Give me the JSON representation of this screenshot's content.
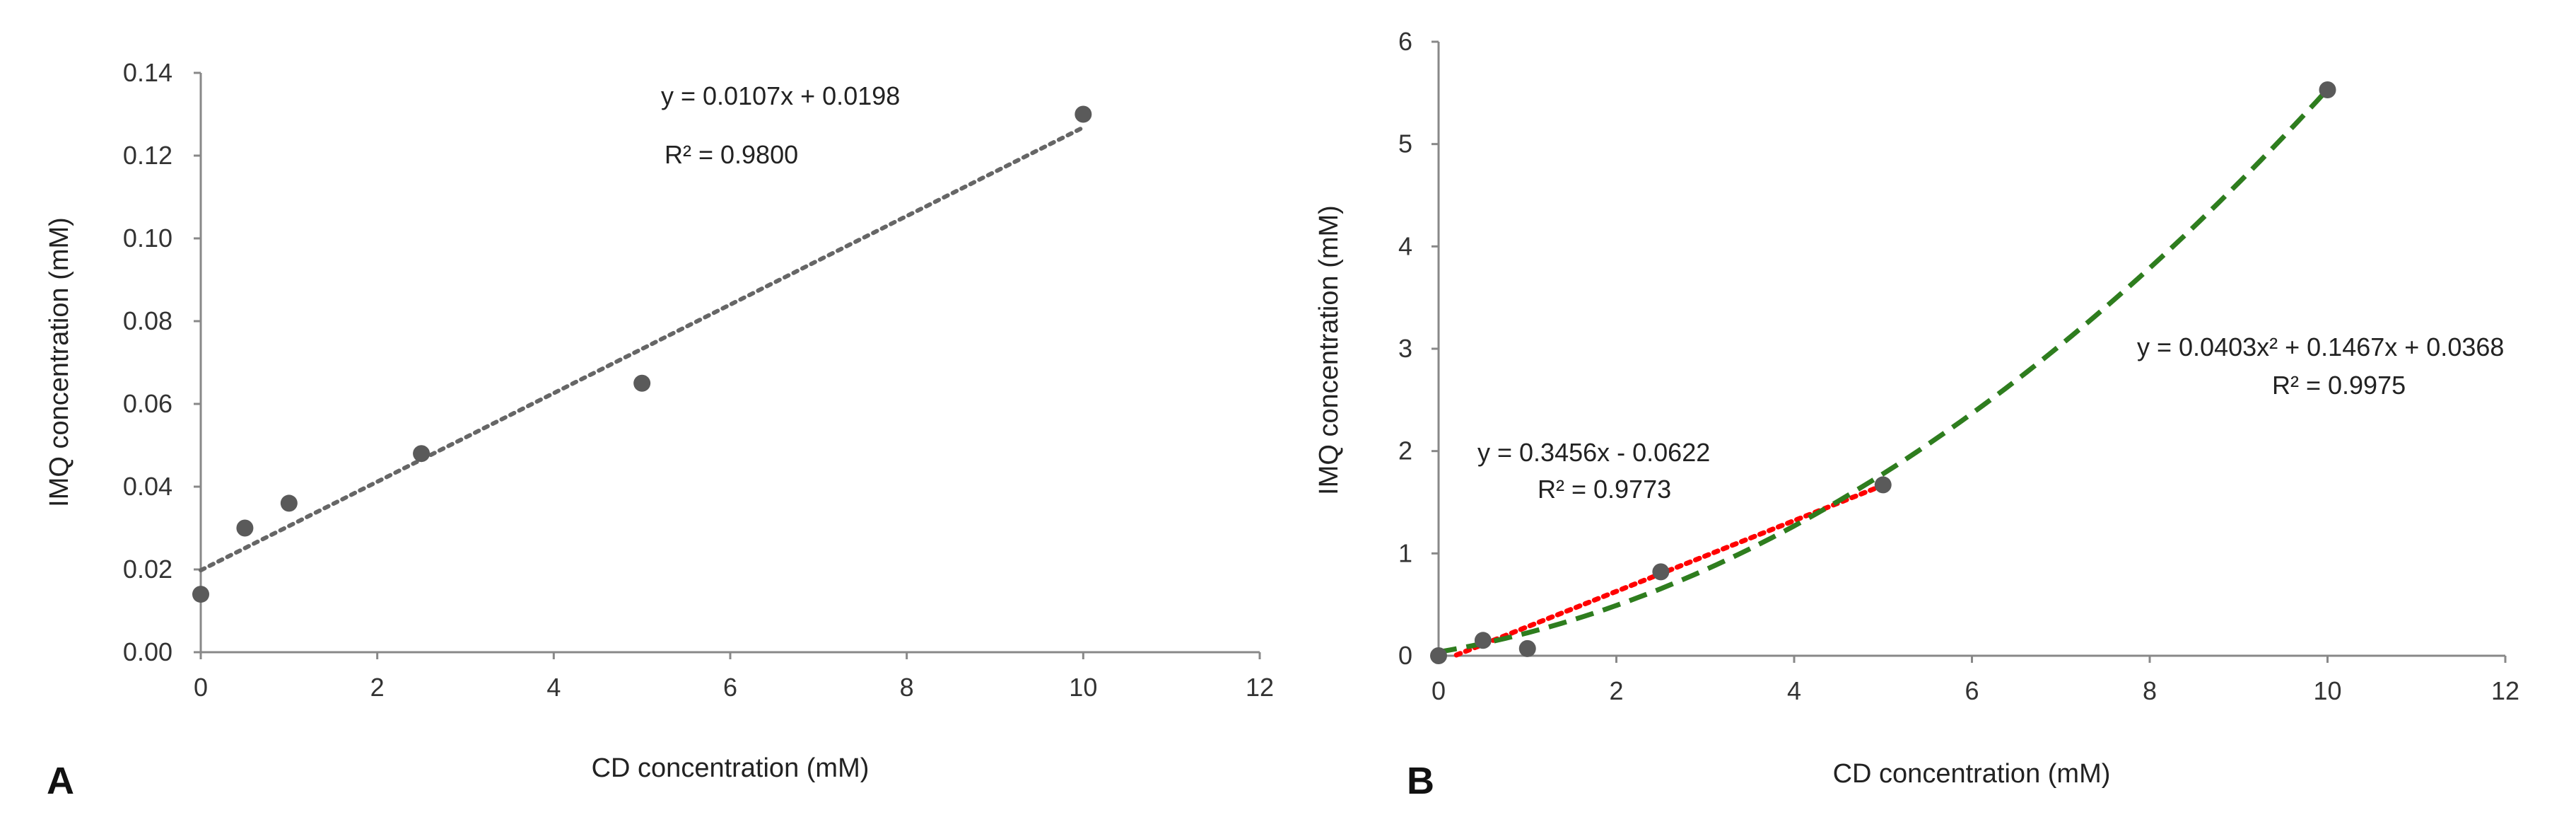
{
  "chart_data": [
    {
      "panel_label": "A",
      "type": "scatter",
      "xlabel": "CD concentration (mM)",
      "ylabel": "IMQ concentration (mM)",
      "xlim": [
        0,
        12
      ],
      "ylim": [
        0,
        0.14
      ],
      "x_ticks": [
        0,
        2,
        4,
        6,
        8,
        10,
        12
      ],
      "y_ticks": [
        0.0,
        0.02,
        0.04,
        0.06,
        0.08,
        0.1,
        0.12,
        0.14
      ],
      "x_tick_labels": [
        "0",
        "2",
        "4",
        "6",
        "8",
        "10",
        "12"
      ],
      "y_tick_labels": [
        "0.00",
        "0.02",
        "0.04",
        "0.06",
        "0.08",
        "0.10",
        "0.12",
        "0.14"
      ],
      "point_color": "#5a5a5a",
      "series": [
        {
          "name": "data",
          "x": [
            0,
            0.5,
            1,
            2.5,
            5,
            10
          ],
          "y": [
            0.014,
            0.03,
            0.036,
            0.048,
            0.065,
            0.13
          ]
        }
      ],
      "trendlines": [
        {
          "kind": "linear",
          "coeffs": [
            0.0107,
            0.0198
          ],
          "x_range": [
            0,
            10
          ],
          "color": "#666666",
          "style": "dotted",
          "equation": "y = 0.0107x + 0.0198",
          "r2": "R² = 0.9800"
        }
      ]
    },
    {
      "panel_label": "B",
      "type": "scatter",
      "xlabel": "CD concentration (mM)",
      "ylabel": "IMQ concentration (mM)",
      "xlim": [
        0,
        12
      ],
      "ylim": [
        0,
        6
      ],
      "x_ticks": [
        0,
        2,
        4,
        6,
        8,
        10,
        12
      ],
      "y_ticks": [
        0,
        1,
        2,
        3,
        4,
        5,
        6
      ],
      "x_tick_labels": [
        "0",
        "2",
        "4",
        "6",
        "8",
        "10",
        "12"
      ],
      "y_tick_labels": [
        "0",
        "1",
        "2",
        "3",
        "4",
        "5",
        "6"
      ],
      "point_color": "#5a5a5a",
      "series": [
        {
          "name": "data",
          "x": [
            0,
            0.5,
            1,
            2.5,
            5,
            10
          ],
          "y": [
            0.0,
            0.15,
            0.07,
            0.82,
            1.67,
            5.53
          ]
        }
      ],
      "trendlines": [
        {
          "kind": "linear",
          "coeffs": [
            0.3456,
            -0.0622
          ],
          "x_range": [
            0.2,
            5
          ],
          "color": "#ff0000",
          "style": "dotted",
          "equation": "y = 0.3456x - 0.0622",
          "r2": "R² = 0.9773"
        },
        {
          "kind": "quadratic",
          "coeffs": [
            0.0403,
            0.1467,
            0.0368
          ],
          "x_range": [
            0,
            10
          ],
          "color": "#2e7d1e",
          "style": "dashed",
          "equation": "y = 0.0403x² + 0.1467x + 0.0368",
          "r2": "R² = 0.9975"
        }
      ]
    }
  ]
}
